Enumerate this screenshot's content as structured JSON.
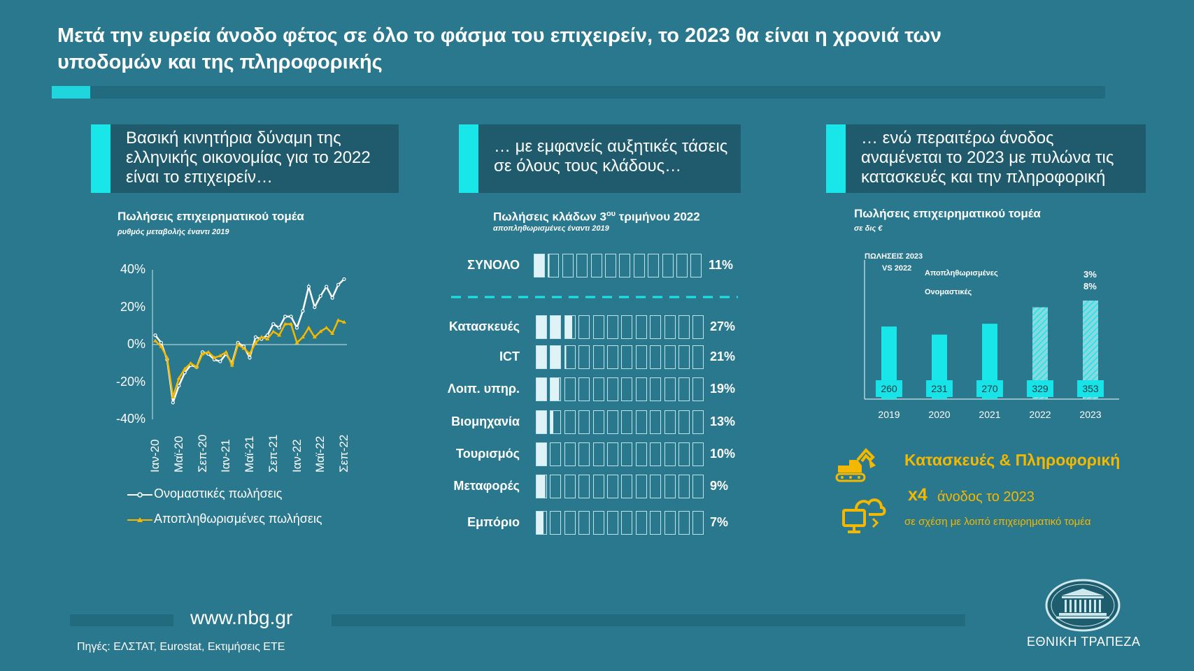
{
  "header": {
    "title_line1": "Μετά την ευρεία άνοδο φέτος σε όλο το φάσμα του επιχειρείν, το 2023 θα είναι η χρονιά των",
    "title_line2": "υποδομών και της πληροφορικής"
  },
  "panels": [
    {
      "heading": "Βασική κινητήρια δύναμη της ελληνικής οικονομίας για το 2022 είναι το επιχειρείν…"
    },
    {
      "heading": "… με εμφανείς αυξητικές τάσεις σε όλους τους κλάδους…"
    },
    {
      "heading": "… ενώ περαιτέρω άνοδος αναμένεται το 2023 με πυλώνα τις κατασκευές και την πληροφορική"
    }
  ],
  "colors": {
    "accent": "#19e6e8",
    "background": "#2a788e",
    "panel": "#1f5b6d",
    "yellow": "#f4b800"
  },
  "chart_data": [
    {
      "type": "line",
      "title": "Πωλήσεις επιχειρηματικού τομέα",
      "subtitle": "ρυθμός μεταβολής έναντι 2019",
      "yticks": [
        "40%",
        "20%",
        "0%",
        "-20%",
        "-40%"
      ],
      "ylim": [
        -40,
        40
      ],
      "xticks": [
        "Ιαν-20",
        "Μαϊ-20",
        "Σεπ-20",
        "Ιαν-21",
        "Μαϊ-21",
        "Σεπ-21",
        "Ιαν-22",
        "Μαϊ-22",
        "Σεπ-22"
      ],
      "x": [
        "Ιαν-20",
        "Φεβ-20",
        "Μαρ-20",
        "Απρ-20",
        "Μαϊ-20",
        "Ιουν-20",
        "Ιουλ-20",
        "Αυγ-20",
        "Σεπ-20",
        "Οκτ-20",
        "Νοε-20",
        "Δεκ-20",
        "Ιαν-21",
        "Φεβ-21",
        "Μαρ-21",
        "Απρ-21",
        "Μαϊ-21",
        "Ιουν-21",
        "Ιουλ-21",
        "Αυγ-21",
        "Σεπ-21",
        "Οκτ-21",
        "Νοε-21",
        "Δεκ-21",
        "Ιαν-22",
        "Φεβ-22",
        "Μαρ-22",
        "Απρ-22",
        "Μαϊ-22",
        "Ιουν-22",
        "Ιουλ-22",
        "Αυγ-22",
        "Σεπ-22"
      ],
      "series": [
        {
          "name": "Ονομαστικές πωλήσεις",
          "color": "#ffffff",
          "values": [
            5,
            1,
            -8,
            -31,
            -22,
            -15,
            -11,
            -12,
            -4,
            -5,
            -8,
            -9,
            -5,
            -10,
            1,
            -1,
            -7,
            4,
            3,
            5,
            11,
            9,
            15,
            15,
            9,
            18,
            31,
            20,
            26,
            31,
            25,
            32,
            35
          ]
        },
        {
          "name": "Αποπληθωρισμένες πωλήσεις",
          "color": "#f4b800",
          "values": [
            2,
            -1,
            -7,
            -28,
            -18,
            -13,
            -10,
            -12,
            -5,
            -4,
            -7,
            -6,
            -4,
            -11,
            0,
            -2,
            -5,
            1,
            4,
            3,
            7,
            5,
            11,
            11,
            1,
            4,
            9,
            4,
            7,
            9,
            6,
            13,
            12
          ]
        }
      ]
    },
    {
      "type": "bar",
      "title": "Πωλήσεις κλάδων 3ου τριμήνου 2022",
      "subtitle": "αποπληθωρισμένες έναντι 2019",
      "total": {
        "category": "ΣΥΝΟΛΟ",
        "value": 11,
        "label": "11%"
      },
      "categories": [
        "Κατασκευές",
        "ICT",
        "Λοιπ. υπηρ.",
        "Βιομηχανία",
        "Τουρισμός",
        "Μεταφορές",
        "Εμπόριο"
      ],
      "values": [
        27,
        21,
        19,
        13,
        10,
        9,
        7
      ],
      "labels": [
        "27%",
        "21%",
        "19%",
        "13%",
        "10%",
        "9%",
        "7%"
      ],
      "units_per_block": 10,
      "blocks": 12
    },
    {
      "type": "bar",
      "title": "Πωλήσεις επιχειρηματικού τομέα",
      "subtitle": "σε δις €",
      "categories": [
        "2019",
        "2020",
        "2021",
        "2022",
        "2023"
      ],
      "values": [
        260,
        231,
        270,
        329,
        353
      ],
      "labels": [
        "260",
        "231",
        "270",
        "329",
        "353"
      ],
      "forecast": [
        false,
        false,
        false,
        true,
        true
      ],
      "annotation_header_line1": "ΠΩΛΗΣΕΙΣ 2023",
      "annotation_header_line2": "VS 2022",
      "annotation_deflated": "Αποπληθωρισμένες",
      "annotation_nominal": "Ονομαστικές",
      "annotation_deflated_value": "3%",
      "annotation_nominal_value": "8%"
    }
  ],
  "highlight": {
    "title": "Κατασκευές & Πληροφορική",
    "multiplier": "x4",
    "growth_text": "άνοδος το 2023",
    "comparison": "σε σχέση με λοιπό επιχειρηματικό τομέα",
    "icons": [
      "excavator-icon",
      "cloud-computer-icon"
    ]
  },
  "footer": {
    "website": "www.nbg.gr",
    "sources": "Πηγές: ΕΛΣΤΑΤ, Eurostat, Εκτιμήσεις ΕΤΕ",
    "bank_name": "ΕΘΝΙΚΗ ΤΡΑΠΕΖΑ"
  }
}
